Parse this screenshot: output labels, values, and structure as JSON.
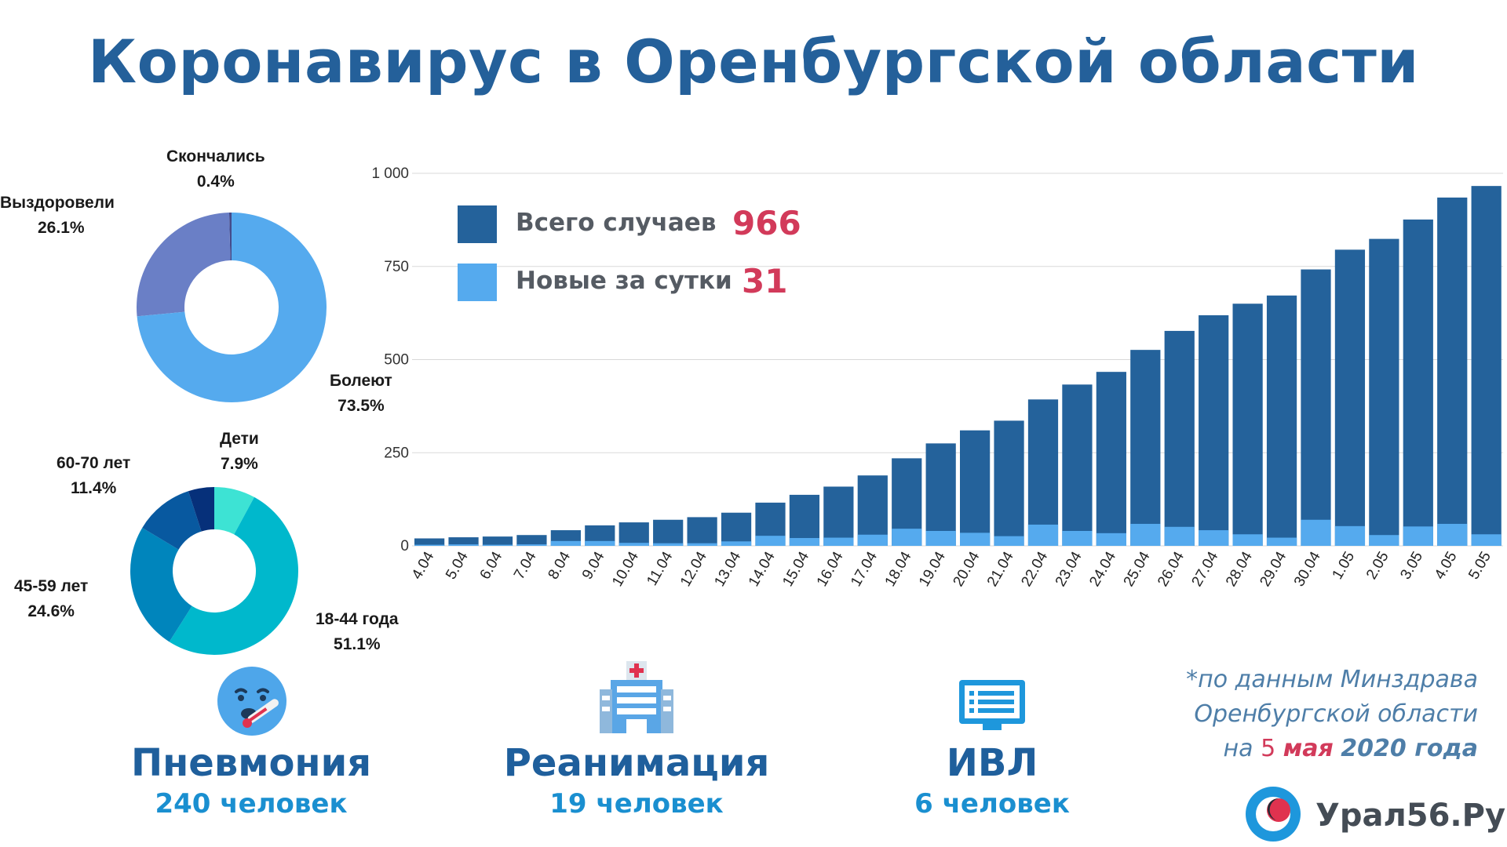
{
  "title": "Коронавирус в Оренбургской области",
  "chart_data": [
    {
      "type": "pie",
      "subtype": "donut",
      "slices": [
        {
          "label": "Болеют",
          "value": 73.5,
          "pct": "73.5%",
          "color": "#55aaee"
        },
        {
          "label": "Выздоровели",
          "value": 26.1,
          "pct": "26.1%",
          "color": "#6a7fc6"
        },
        {
          "label": "Скончались",
          "value": 0.4,
          "pct": "0.4%",
          "color": "#444b8a"
        }
      ]
    },
    {
      "type": "pie",
      "subtype": "donut",
      "slices": [
        {
          "label": "Дети",
          "value": 7.9,
          "pct": "7.9%",
          "color": "#3de3d4"
        },
        {
          "label": "18-44 года",
          "value": 51.1,
          "pct": "51.1%",
          "color": "#00b8cc"
        },
        {
          "label": "45-59 лет",
          "value": 24.6,
          "pct": "24.6%",
          "color": "#0085bc"
        },
        {
          "label": "60-70 лет",
          "value": 11.4,
          "pct": "11.4%",
          "color": "#0859a0"
        },
        {
          "label": "",
          "value": 5.0,
          "pct": "",
          "color": "#06307a"
        }
      ]
    },
    {
      "type": "bar",
      "stacked_overlay": true,
      "categories": [
        "4.04",
        "5.04",
        "6.04",
        "7.04",
        "8.04",
        "9.04",
        "10.04",
        "11.04",
        "12.04",
        "13.04",
        "14.04",
        "15.04",
        "16.04",
        "17.04",
        "18.04",
        "19.04",
        "20.04",
        "21.04",
        "22.04",
        "23.04",
        "24.04",
        "25.04",
        "26.04",
        "27.04",
        "28.04",
        "29.04",
        "30.04",
        "1.05",
        "2.05",
        "3.05",
        "4.05",
        "5.05"
      ],
      "series": [
        {
          "name": "Всего случаев",
          "color": "#24629b",
          "values": [
            20,
            23,
            25,
            29,
            42,
            55,
            63,
            70,
            77,
            89,
            116,
            137,
            159,
            189,
            235,
            275,
            310,
            336,
            393,
            433,
            467,
            526,
            577,
            619,
            650,
            672,
            742,
            795,
            824,
            876,
            935,
            966
          ]
        },
        {
          "name": "Новые за сутки",
          "color": "#55aaee",
          "values": [
            3,
            4,
            3,
            4,
            13,
            13,
            8,
            7,
            7,
            12,
            27,
            21,
            22,
            30,
            46,
            40,
            35,
            26,
            57,
            40,
            34,
            59,
            51,
            42,
            31,
            22,
            70,
            53,
            29,
            52,
            59,
            31
          ]
        }
      ],
      "yticks": [
        "0",
        "250",
        "500",
        "750",
        "1 000"
      ],
      "ylim": [
        0,
        1000
      ],
      "grid": true
    }
  ],
  "legend": [
    {
      "label": "Всего случаев",
      "value": "966",
      "color": "#24629b"
    },
    {
      "label": "Новые за сутки",
      "value": "31",
      "color": "#55aaee"
    }
  ],
  "stats": [
    {
      "name": "Пневмония",
      "value": "240 человек",
      "icon": "sick-face-thermometer-icon"
    },
    {
      "name": "Реанимация",
      "value": "19 человек",
      "icon": "hospital-icon"
    },
    {
      "name": "ИВЛ",
      "value": "6 человек",
      "icon": "monitor-icon"
    }
  ],
  "source": {
    "line1": "*по данным Минздрава",
    "line2": "Оренбургской области",
    "prefix": "на ",
    "day": "5",
    "month": "мая",
    "year": "2020 года"
  },
  "brand": "Урал56.Ру",
  "colors": {
    "title": "#24609a",
    "accent": "#d23a5a",
    "dark_bar": "#24629b",
    "light_bar": "#55aaee"
  }
}
